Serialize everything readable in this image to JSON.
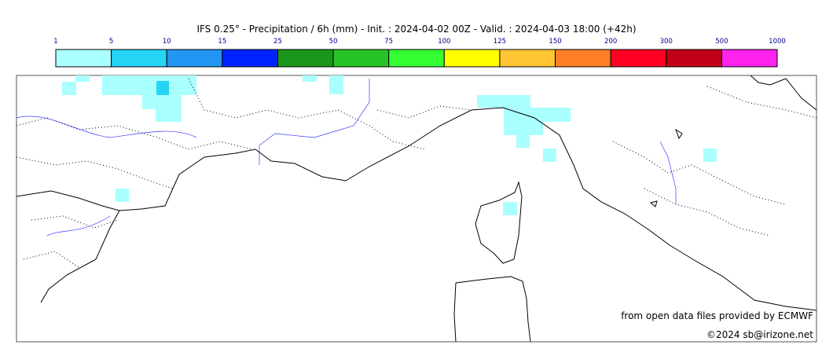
{
  "header": {
    "title": "IFS 0.25° - Precipitation / 6h (mm) - Init. : 2024-04-02 00Z - Valid. : 2024-04-03 18:00 (+42h)"
  },
  "colorbar": {
    "ticks": [
      1,
      5,
      10,
      15,
      25,
      50,
      75,
      100,
      125,
      150,
      200,
      300,
      500,
      1000
    ],
    "colors": [
      "#aaffff",
      "#25d5f5",
      "#2196f3",
      "#0022ff",
      "#1a961a",
      "#26c426",
      "#33ff33",
      "#ffff00",
      "#ffc533",
      "#ff7f26",
      "#ff0022",
      "#c00016",
      "#ff22ee"
    ]
  },
  "credits": [
    "from open data files provided by ECMWF",
    "©2024 sb@irizone.net"
  ]
}
